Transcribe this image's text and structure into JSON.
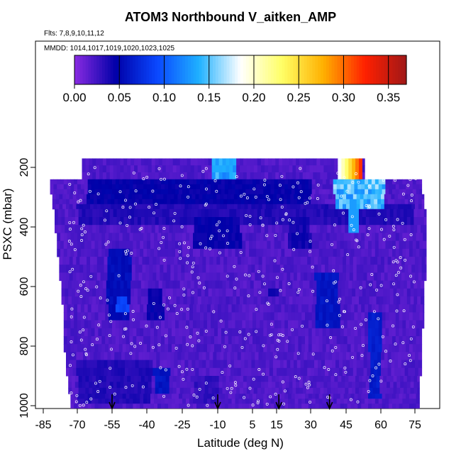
{
  "chart_data": {
    "type": "heatmap",
    "title": "ATOM3 Northbound V_aitken_AMP",
    "flights_label": "Flts: 7,8,9,10,11,12",
    "dates_label": "MMDD: 1014,1017,1019,1020,1023,1025",
    "xlabel": "Latitude (deg N)",
    "ylabel": "PSXC (mbar)",
    "xlim": [
      -85,
      85
    ],
    "ylim": [
      1000,
      0
    ],
    "x_ticks": [
      "-85",
      "-70",
      "-55",
      "-40",
      "-25",
      "-10",
      "5",
      "15",
      "30",
      "45",
      "60",
      "75"
    ],
    "y_ticks": [
      "200",
      "400",
      "600",
      "800",
      "1000"
    ],
    "colorbar": {
      "min": 0.0,
      "max": 0.37,
      "ticks": [
        "0.00",
        "0.05",
        "0.10",
        "0.15",
        "0.20",
        "0.25",
        "0.30",
        "0.35"
      ],
      "colors": [
        "#8a2be2",
        "#0000a8",
        "#0a48ff",
        "#1fb0ff",
        "#ffffff",
        "#ffff66",
        "#ffb000",
        "#ff2000",
        "#a01818"
      ]
    },
    "arrows_latitude": [
      -55,
      -10,
      16,
      38
    ],
    "background_value": 0.02,
    "grid": false,
    "legend": "none"
  }
}
